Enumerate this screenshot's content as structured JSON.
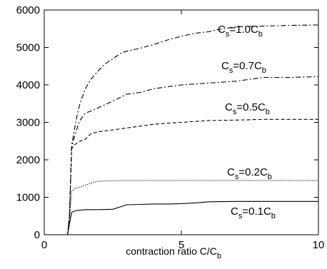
{
  "chart_data": {
    "type": "line",
    "title": "",
    "xlabel": "contraction ratio  C/C",
    "xlabel_sub": "b",
    "ylabel": "",
    "xlim": [
      0,
      10
    ],
    "ylim": [
      0,
      6000
    ],
    "xticks": [
      0,
      5,
      10
    ],
    "yticks": [
      0,
      1000,
      2000,
      3000,
      4000,
      5000,
      6000
    ],
    "grid": false,
    "series": [
      {
        "name": "C_s=1.0C_b",
        "label_main": "C",
        "label_sub1": "s",
        "label_mid": "=1.0C",
        "label_sub2": "b",
        "style": "dash-dot",
        "x": [
          0,
          0.85,
          0.92,
          1.0,
          1.1,
          1.2,
          1.3,
          1.5,
          1.7,
          2.0,
          2.2,
          2.5,
          2.8,
          3.0,
          3.5,
          4.0,
          4.5,
          5.0,
          5.5,
          6.0,
          6.5,
          7.0,
          8.0,
          9.0,
          10.0
        ],
        "values": [
          0,
          0,
          500,
          2400,
          2800,
          3200,
          3500,
          3900,
          4150,
          4400,
          4550,
          4700,
          4850,
          4900,
          4980,
          5080,
          5200,
          5300,
          5380,
          5420,
          5500,
          5550,
          5570,
          5590,
          5600
        ]
      },
      {
        "name": "C_s=0.7C_b",
        "label_main": "C",
        "label_sub1": "s",
        "label_mid": "=0.7C",
        "label_sub2": "b",
        "style": "dash-dot",
        "x": [
          0,
          0.85,
          0.92,
          1.0,
          1.1,
          1.2,
          1.3,
          1.5,
          1.7,
          2.0,
          2.3,
          2.6,
          3.0,
          3.5,
          4.0,
          4.5,
          5.0,
          6.0,
          7.0,
          8.0,
          9.0,
          10.0
        ],
        "values": [
          0,
          0,
          500,
          2350,
          2600,
          2850,
          3050,
          3250,
          3300,
          3400,
          3500,
          3600,
          3750,
          3800,
          3900,
          3950,
          4000,
          4050,
          4100,
          4200,
          4200,
          4220
        ]
      },
      {
        "name": "C_s=0.5C_b",
        "label_main": "C",
        "label_sub1": "s",
        "label_mid": "=0.5C",
        "label_sub2": "b",
        "style": "dashed",
        "x": [
          0,
          0.85,
          0.92,
          1.0,
          1.1,
          1.2,
          1.3,
          1.5,
          1.7,
          2.0,
          2.5,
          3.0,
          3.5,
          4.0,
          4.5,
          5.0,
          6.0,
          7.0,
          8.0,
          9.0,
          10.0
        ],
        "values": [
          0,
          0,
          500,
          2300,
          2400,
          2450,
          2500,
          2550,
          2700,
          2750,
          2800,
          2850,
          2900,
          2950,
          2980,
          3000,
          3050,
          3060,
          3080,
          3080,
          3080
        ]
      },
      {
        "name": "C_s=0.2C_b",
        "label_main": "C",
        "label_sub1": "s",
        "label_mid": "=0.2C",
        "label_sub2": "b",
        "style": "dotted",
        "x": [
          0,
          0.85,
          0.92,
          1.0,
          1.1,
          1.2,
          1.4,
          1.6,
          1.8,
          2.0,
          2.5,
          3.0,
          4.0,
          5.0,
          6.0,
          7.0,
          8.0,
          9.0,
          10.0
        ],
        "values": [
          0,
          0,
          400,
          1150,
          1230,
          1250,
          1300,
          1350,
          1400,
          1430,
          1440,
          1450,
          1450,
          1450,
          1450,
          1450,
          1450,
          1450,
          1450
        ]
      },
      {
        "name": "C_s=0.1C_b",
        "label_main": "C",
        "label_sub1": "s",
        "label_mid": "=0.1C",
        "label_sub2": "b",
        "style": "solid",
        "x": [
          0,
          0.85,
          0.92,
          1.0,
          1.1,
          1.2,
          1.5,
          2.0,
          2.5,
          2.8,
          3.0,
          3.5,
          4.0,
          4.5,
          5.0,
          5.5,
          6.0,
          7.0,
          8.0,
          9.0,
          10.0
        ],
        "values": [
          0,
          0,
          300,
          600,
          630,
          650,
          670,
          670,
          680,
          750,
          800,
          810,
          820,
          820,
          830,
          850,
          880,
          890,
          890,
          890,
          890
        ]
      }
    ]
  }
}
